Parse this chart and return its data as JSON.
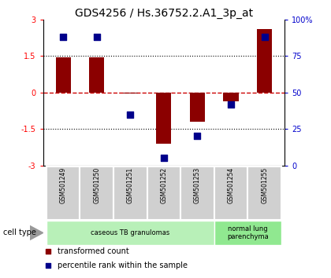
{
  "title": "GDS4256 / Hs.36752.2.A1_3p_at",
  "samples": [
    "GSM501249",
    "GSM501250",
    "GSM501251",
    "GSM501252",
    "GSM501253",
    "GSM501254",
    "GSM501255"
  ],
  "transformed_count": [
    1.45,
    1.45,
    -0.05,
    -2.1,
    -1.2,
    -0.35,
    2.6
  ],
  "percentile_rank": [
    88,
    88,
    35,
    5,
    20,
    42,
    88
  ],
  "ylim_left": [
    -3,
    3
  ],
  "yticks_left": [
    -3,
    -1.5,
    0,
    1.5,
    3
  ],
  "yticks_right": [
    0,
    25,
    50,
    75,
    100
  ],
  "bar_color": "#8B0000",
  "dot_color": "#00008B",
  "hline_color": "#CC0000",
  "dotline_color": "black",
  "cell_type_groups": [
    {
      "label": "caseous TB granulomas",
      "samples_range": [
        0,
        4
      ],
      "color": "#b8f0b8"
    },
    {
      "label": "normal lung\nparenchyma",
      "samples_range": [
        5,
        6
      ],
      "color": "#90e890"
    }
  ],
  "legend_entries": [
    {
      "label": "transformed count",
      "color": "#8B0000"
    },
    {
      "label": "percentile rank within the sample",
      "color": "#00008B"
    }
  ],
  "cell_type_label": "cell type",
  "background_color": "#ffffff",
  "title_fontsize": 10,
  "tick_fontsize": 7,
  "label_fontsize": 7.5,
  "right_axis_color": "#0000CC"
}
